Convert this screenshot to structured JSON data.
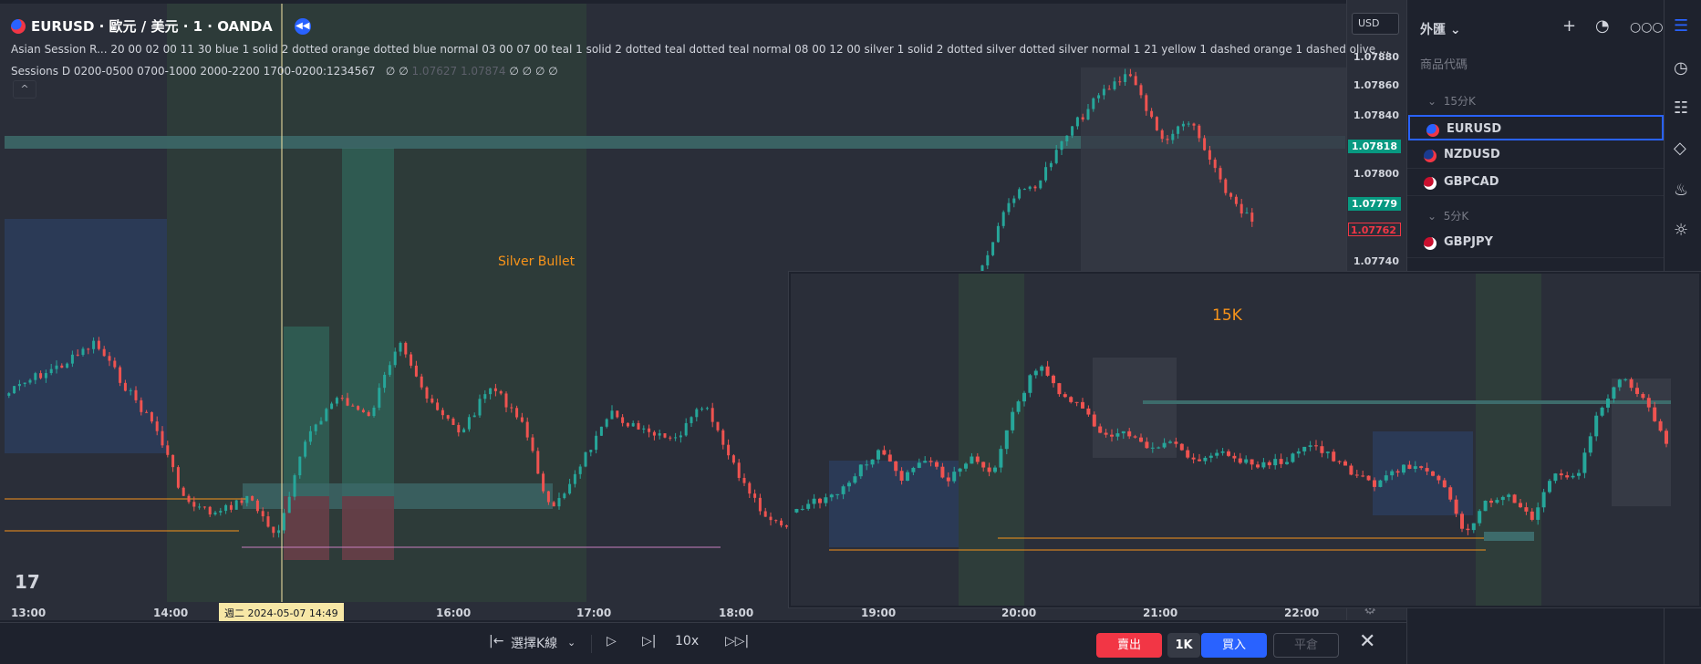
{
  "chart": {
    "symbol_title": "EURUSD · 歐元 / 美元 · 1 · OANDA",
    "indicator1": "Asian Session R...  20 00 02 00 11 30 blue 1 solid 2 dotted orange dotted blue normal 03 00 07 00 teal 1 solid 2 dotted teal dotted teal normal 08 00 12 00 silver 1 solid 2 dotted silver dotted silver normal 1 21 yellow 1 dashed orange 1 dashed olive ...",
    "indicator2_name": "Sessions D 0200-0500 0700-1000 2000-2200 1700-0200:1234567",
    "indicator2_vals": [
      "∅",
      "∅"
    ],
    "indicator2_nums": [
      "1.07627",
      "1.07874"
    ],
    "indicator2_tail": [
      "∅",
      "∅",
      "∅",
      "∅"
    ],
    "annotation": "Silver Bullet",
    "currency": "USD",
    "crosshair_time": "週二 2024-05-07   14:49",
    "tv_logo": "17"
  },
  "price_scale": {
    "labels": [
      "1.07880",
      "1.07860",
      "1.07840",
      "1.07800",
      "1.07740"
    ],
    "badges": [
      {
        "text": "1.07818",
        "bg": "#089981",
        "color": "#ffffff"
      },
      {
        "text": "1.07779",
        "bg": "#089981",
        "color": "#ffffff"
      },
      {
        "text": "1.07762",
        "bg": "#2a2e39",
        "color": "#f23645"
      }
    ]
  },
  "time_axis": [
    "13:00",
    "14:00",
    "16:00",
    "17:00",
    "18:00",
    "19:00",
    "20:00",
    "21:00",
    "22:00"
  ],
  "inset": {
    "title": "15K"
  },
  "bottom_bar": {
    "bar_select": "選擇K線",
    "speed": "10x",
    "sell": "賣出",
    "qty": "1K",
    "buy": "買入",
    "close_position": "平倉"
  },
  "watchlist": {
    "title": "外匯",
    "column_header": "商品代碼",
    "sections": [
      {
        "label": "15分K",
        "items": [
          "EURUSD",
          "NZDUSD",
          "GBPCAD"
        ]
      },
      {
        "label": "5分K",
        "items": [
          "GBPJPY"
        ]
      }
    ],
    "selected": "EURUSD"
  },
  "colors": {
    "up": "#26a69a",
    "down": "#ef5350",
    "accent": "#2962ff",
    "orange": "#f7931a",
    "teal_zone": "#2f5a5a",
    "blue_zone": "#2b3a56"
  },
  "icons": [
    "plus-icon",
    "pie-chart-icon",
    "more-icon",
    "watchlist-icon",
    "alarm-icon",
    "list-icon",
    "layers-icon",
    "fire-icon",
    "bulb-icon",
    "play-icon",
    "step-icon",
    "end-icon",
    "close-icon"
  ]
}
